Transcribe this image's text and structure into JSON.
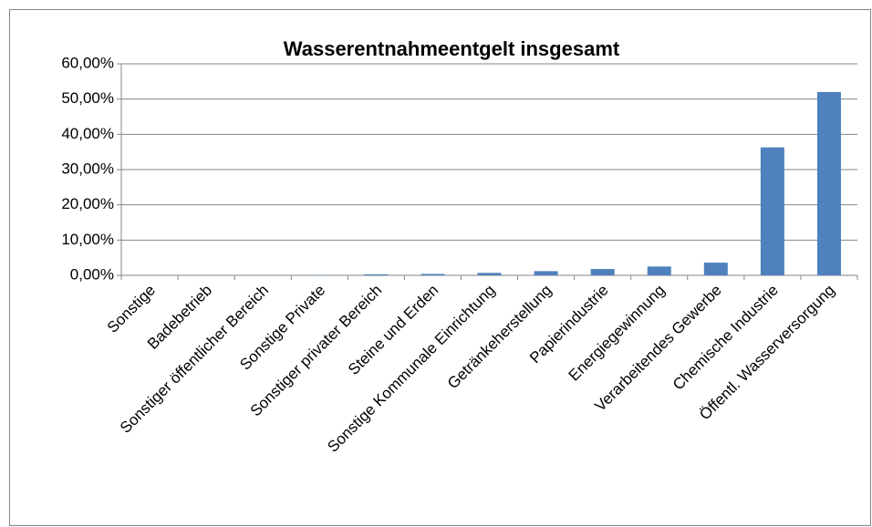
{
  "chart_data": {
    "type": "bar",
    "title": "Wasserentnahmeentgelt insgesamt",
    "categories": [
      "Sonstige",
      "Badebetrieb",
      "Sonstiger öffentlicher Bereich",
      "Sonstige Private",
      "Sonstiger privater Bereich",
      "Steine und Erden",
      "Sonstige Kommunale Einrichtung",
      "Getränkeherstellung",
      "Papierindustrie",
      "Energiegewinnung",
      "Verarbeitendes Gewerbe",
      "Chemische Industrie",
      "Öffentl. Wasserversorgung"
    ],
    "values": [
      0,
      0,
      0.05,
      0.1,
      0.3,
      0.4,
      0.7,
      1.2,
      1.8,
      2.5,
      3.6,
      36.3,
      52.0
    ],
    "color": "#4f81bd",
    "ylim": [
      0,
      60
    ],
    "yticks": [
      {
        "value": 0,
        "label": "0,00%"
      },
      {
        "value": 10,
        "label": "10,00%"
      },
      {
        "value": 20,
        "label": "20,00%"
      },
      {
        "value": 30,
        "label": "30,00%"
      },
      {
        "value": 40,
        "label": "40,00%"
      },
      {
        "value": 50,
        "label": "50,00%"
      },
      {
        "value": 60,
        "label": "60,00%"
      }
    ],
    "grid": true
  }
}
